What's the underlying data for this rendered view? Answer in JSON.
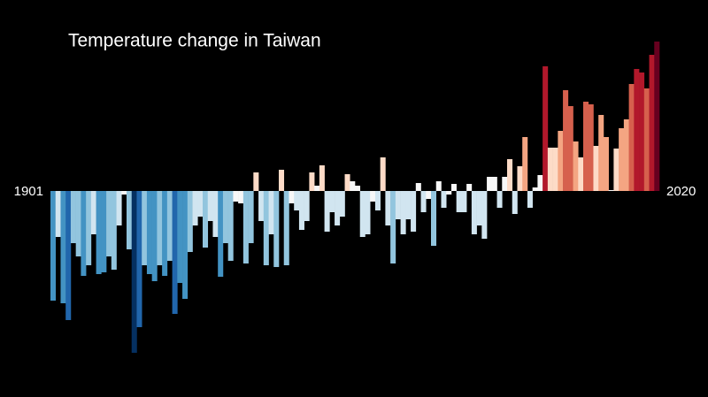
{
  "chart_data": {
    "type": "bar",
    "title": "Temperature change in Taiwan",
    "categories": [
      "1901",
      null,
      null,
      null,
      null,
      null,
      null,
      null,
      null,
      null,
      null,
      null,
      null,
      null,
      null,
      null,
      null,
      null,
      null,
      null,
      null,
      null,
      null,
      null,
      null,
      null,
      null,
      null,
      null,
      null,
      null,
      null,
      null,
      null,
      null,
      null,
      null,
      null,
      null,
      null,
      null,
      null,
      null,
      null,
      null,
      null,
      null,
      null,
      null,
      null,
      null,
      null,
      null,
      null,
      null,
      null,
      null,
      null,
      null,
      null,
      null,
      null,
      null,
      null,
      null,
      null,
      null,
      null,
      null,
      null,
      null,
      null,
      null,
      null,
      null,
      null,
      null,
      null,
      null,
      null,
      null,
      null,
      null,
      null,
      null,
      null,
      null,
      null,
      null,
      null,
      null,
      null,
      null,
      null,
      null,
      null,
      null,
      null,
      null,
      null,
      null,
      null,
      null,
      null,
      null,
      null,
      null,
      null,
      null,
      null,
      null,
      null,
      null,
      null,
      null,
      null,
      null,
      null,
      null,
      "2020"
    ],
    "values": [
      -1.24,
      -0.52,
      -1.27,
      -1.46,
      -0.59,
      -0.74,
      -0.96,
      -0.84,
      -0.49,
      -0.94,
      -0.92,
      -0.74,
      -0.89,
      -0.39,
      -0.04,
      -0.66,
      -1.83,
      -1.54,
      -0.84,
      -0.94,
      -1.02,
      -0.84,
      -0.96,
      -0.79,
      -1.39,
      -1.04,
      -1.22,
      -0.69,
      -0.39,
      -0.29,
      -0.64,
      -0.34,
      -0.52,
      -0.97,
      -0.59,
      -0.79,
      -0.12,
      -0.14,
      -0.82,
      -0.59,
      0.21,
      -0.34,
      -0.84,
      -0.49,
      -0.86,
      0.24,
      -0.84,
      -0.14,
      -0.22,
      -0.44,
      -0.34,
      0.21,
      0.06,
      0.29,
      -0.46,
      -0.24,
      -0.39,
      -0.29,
      0.19,
      0.11,
      0.06,
      -0.52,
      -0.49,
      -0.12,
      -0.22,
      0.38,
      -0.39,
      -0.82,
      -0.32,
      -0.49,
      -0.32,
      -0.46,
      0.09,
      -0.24,
      -0.09,
      -0.62,
      0.11,
      -0.19,
      -0.04,
      0.08,
      -0.24,
      -0.24,
      0.08,
      -0.49,
      -0.39,
      -0.54,
      0.16,
      0.16,
      -0.19,
      0.16,
      0.36,
      -0.26,
      0.28,
      0.61,
      -0.19,
      0.04,
      0.18,
      1.41,
      0.49,
      0.49,
      0.68,
      1.14,
      0.96,
      0.56,
      0.38,
      1.01,
      0.98,
      0.51,
      0.86,
      0.61,
      0.01,
      0.48,
      0.71,
      0.81,
      1.21,
      1.38,
      1.34,
      1.16,
      1.54,
      1.69
    ],
    "ylim": [
      -2,
      2
    ],
    "colormap": "RdBu_r"
  }
}
